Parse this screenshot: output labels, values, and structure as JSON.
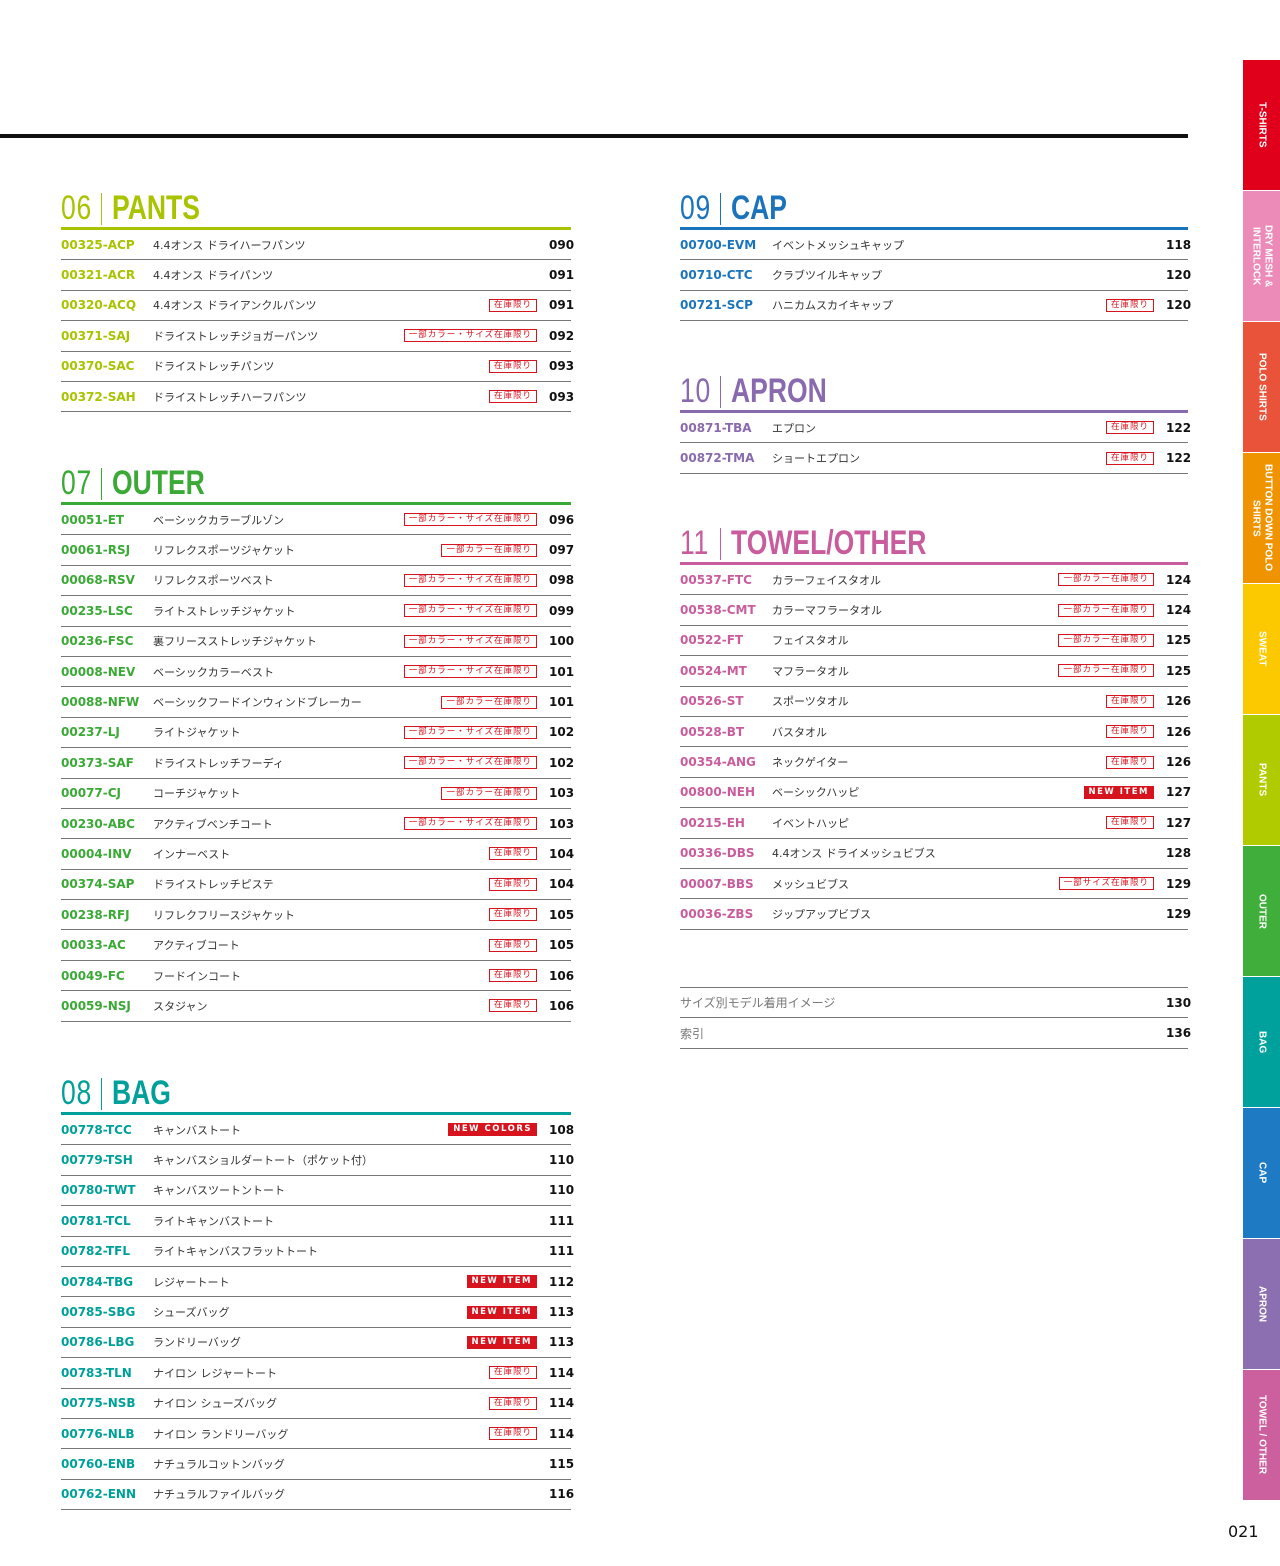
{
  "sections": [
    {
      "num": "06",
      "title": "PANTS",
      "color": "#a9c300",
      "col": "left",
      "items": [
        {
          "code": "00325-ACP",
          "name": "4.4オンス ドライハーフパンツ",
          "badge": "",
          "page": "090"
        },
        {
          "code": "00321-ACR",
          "name": "4.4オンス ドライパンツ",
          "badge": "",
          "page": "091"
        },
        {
          "code": "00320-ACQ",
          "name": "4.4オンス ドライアンクルパンツ",
          "badge": "在庫限り",
          "page": "091"
        },
        {
          "code": "00371-SAJ",
          "name": "ドライストレッチジョガーパンツ",
          "badge": "一部カラー・サイズ在庫限り",
          "page": "092"
        },
        {
          "code": "00370-SAC",
          "name": "ドライストレッチパンツ",
          "badge": "在庫限り",
          "page": "093"
        },
        {
          "code": "00372-SAH",
          "name": "ドライストレッチハーフパンツ",
          "badge": "在庫限り",
          "page": "093"
        }
      ]
    },
    {
      "num": "07",
      "title": "OUTER",
      "color": "#3aa935",
      "col": "left",
      "items": [
        {
          "code": "00051-ET",
          "name": "ベーシックカラーブルゾン",
          "badge": "一部カラー・サイズ在庫限り",
          "page": "096"
        },
        {
          "code": "00061-RSJ",
          "name": "リフレクスポーツジャケット",
          "badge": "一部カラー在庫限り",
          "page": "097"
        },
        {
          "code": "00068-RSV",
          "name": "リフレクスポーツベスト",
          "badge": "一部カラー・サイズ在庫限り",
          "page": "098"
        },
        {
          "code": "00235-LSC",
          "name": "ライトストレッチジャケット",
          "badge": "一部カラー・サイズ在庫限り",
          "page": "099"
        },
        {
          "code": "00236-FSC",
          "name": "裏フリースストレッチジャケット",
          "badge": "一部カラー・サイズ在庫限り",
          "page": "100"
        },
        {
          "code": "00008-NEV",
          "name": "ベーシックカラーベスト",
          "badge": "一部カラー・サイズ在庫限り",
          "page": "101"
        },
        {
          "code": "00088-NFW",
          "name": "ベーシックフードインウィンドブレーカー",
          "badge": "一部カラー在庫限り",
          "page": "101"
        },
        {
          "code": "00237-LJ",
          "name": "ライトジャケット",
          "badge": "一部カラー・サイズ在庫限り",
          "page": "102"
        },
        {
          "code": "00373-SAF",
          "name": "ドライストレッチフーディ",
          "badge": "一部カラー・サイズ在庫限り",
          "page": "102"
        },
        {
          "code": "00077-CJ",
          "name": "コーチジャケット",
          "badge": "一部カラー在庫限り",
          "page": "103"
        },
        {
          "code": "00230-ABC",
          "name": "アクティブベンチコート",
          "badge": "一部カラー・サイズ在庫限り",
          "page": "103"
        },
        {
          "code": "00004-INV",
          "name": "インナーベスト",
          "badge": "在庫限り",
          "page": "104"
        },
        {
          "code": "00374-SAP",
          "name": "ドライストレッチピステ",
          "badge": "在庫限り",
          "page": "104"
        },
        {
          "code": "00238-RFJ",
          "name": "リフレクフリースジャケット",
          "badge": "在庫限り",
          "page": "105"
        },
        {
          "code": "00033-AC",
          "name": "アクティブコート",
          "badge": "在庫限り",
          "page": "105"
        },
        {
          "code": "00049-FC",
          "name": "フードインコート",
          "badge": "在庫限り",
          "page": "106"
        },
        {
          "code": "00059-NSJ",
          "name": "スタジャン",
          "badge": "在庫限り",
          "page": "106"
        }
      ]
    },
    {
      "num": "08",
      "title": "BAG",
      "color": "#00a09a",
      "col": "left",
      "items": [
        {
          "code": "00778-TCC",
          "name": "キャンバストート",
          "badge": "NEW COLORS",
          "page": "108"
        },
        {
          "code": "00779-TSH",
          "name": "キャンバスショルダートート（ポケット付）",
          "badge": "",
          "page": "110"
        },
        {
          "code": "00780-TWT",
          "name": "キャンバスツートントート",
          "badge": "",
          "page": "110"
        },
        {
          "code": "00781-TCL",
          "name": "ライトキャンバストート",
          "badge": "",
          "page": "111"
        },
        {
          "code": "00782-TFL",
          "name": "ライトキャンバスフラットトート",
          "badge": "",
          "page": "111"
        },
        {
          "code": "00784-TBG",
          "name": "レジャートート",
          "badge": "NEW ITEM",
          "page": "112"
        },
        {
          "code": "00785-SBG",
          "name": "シューズバッグ",
          "badge": "NEW ITEM",
          "page": "113"
        },
        {
          "code": "00786-LBG",
          "name": "ランドリーバッグ",
          "badge": "NEW ITEM",
          "page": "113"
        },
        {
          "code": "00783-TLN",
          "name": "ナイロン レジャートート",
          "badge": "在庫限り",
          "page": "114"
        },
        {
          "code": "00775-NSB",
          "name": "ナイロン シューズバッグ",
          "badge": "在庫限り",
          "page": "114"
        },
        {
          "code": "00776-NLB",
          "name": "ナイロン ランドリーバッグ",
          "badge": "在庫限り",
          "page": "114"
        },
        {
          "code": "00760-ENB",
          "name": "ナチュラルコットンバッグ",
          "badge": "",
          "page": "115"
        },
        {
          "code": "00762-ENN",
          "name": "ナチュラルファイルバッグ",
          "badge": "",
          "page": "116"
        }
      ]
    },
    {
      "num": "09",
      "title": "CAP",
      "color": "#1b74bb",
      "col": "right",
      "items": [
        {
          "code": "00700-EVM",
          "name": "イベントメッシュキャップ",
          "badge": "",
          "page": "118"
        },
        {
          "code": "00710-CTC",
          "name": "クラブツイルキャップ",
          "badge": "",
          "page": "120"
        },
        {
          "code": "00721-SCP",
          "name": "ハニカムスカイキャップ",
          "badge": "在庫限り",
          "page": "120"
        }
      ]
    },
    {
      "num": "10",
      "title": "APRON",
      "color": "#8a6aae",
      "col": "right",
      "items": [
        {
          "code": "00871-TBA",
          "name": "エプロン",
          "badge": "在庫限り",
          "page": "122"
        },
        {
          "code": "00872-TMA",
          "name": "ショートエプロン",
          "badge": "在庫限り",
          "page": "122"
        }
      ]
    },
    {
      "num": "11",
      "title": "TOWEL/OTHER",
      "color": "#c95c9c",
      "col": "right",
      "items": [
        {
          "code": "00537-FTC",
          "name": "カラーフェイスタオル",
          "badge": "一部カラー在庫限り",
          "page": "124"
        },
        {
          "code": "00538-CMT",
          "name": "カラーマフラータオル",
          "badge": "一部カラー在庫限り",
          "page": "124"
        },
        {
          "code": "00522-FT",
          "name": "フェイスタオル",
          "badge": "一部カラー在庫限り",
          "page": "125"
        },
        {
          "code": "00524-MT",
          "name": "マフラータオル",
          "badge": "一部カラー在庫限り",
          "page": "125"
        },
        {
          "code": "00526-ST",
          "name": "スポーツタオル",
          "badge": "在庫限り",
          "page": "126"
        },
        {
          "code": "00528-BT",
          "name": "バスタオル",
          "badge": "在庫限り",
          "page": "126"
        },
        {
          "code": "00354-ANG",
          "name": "ネックゲイター",
          "badge": "在庫限り",
          "page": "126"
        },
        {
          "code": "00800-NEH",
          "name": "ベーシックハッピ",
          "badge": "NEW ITEM",
          "page": "127"
        },
        {
          "code": "00215-EH",
          "name": "イベントハッピ",
          "badge": "在庫限り",
          "page": "127"
        },
        {
          "code": "00336-DBS",
          "name": "4.4オンス ドライメッシュビブス",
          "badge": "",
          "page": "128"
        },
        {
          "code": "00007-BBS",
          "name": "メッシュビブス",
          "badge": "一部サイズ在庫限り",
          "page": "129"
        },
        {
          "code": "00036-ZBS",
          "name": "ジップアップビブス",
          "badge": "",
          "page": "129"
        }
      ]
    }
  ],
  "extras": [
    {
      "name": "サイズ別モデル着用イメージ",
      "page": "130"
    },
    {
      "name": "索引",
      "page": "136"
    }
  ],
  "tabs": [
    {
      "label": "T-SHIRTS",
      "color": "#e0001b"
    },
    {
      "label": "DRY MESH & INTERLOCK",
      "color": "#ec8ab8"
    },
    {
      "label": "POLO SHIRTS",
      "color": "#e8533a"
    },
    {
      "label": "BUTTON DOWN POLO SHIRTS",
      "color": "#f09300"
    },
    {
      "label": "SWEAT",
      "color": "#fcc800"
    },
    {
      "label": "PANTS",
      "color": "#b0cb00"
    },
    {
      "label": "OUTER",
      "color": "#3fae3a"
    },
    {
      "label": "BAG",
      "color": "#00a19c"
    },
    {
      "label": "CAP",
      "color": "#1e7ac2"
    },
    {
      "label": "APRON",
      "color": "#8c6fb0"
    },
    {
      "label": "TOWEL / OTHER",
      "color": "#cc5f9e"
    }
  ],
  "page_number": "021",
  "badge_color": "#d7141e"
}
